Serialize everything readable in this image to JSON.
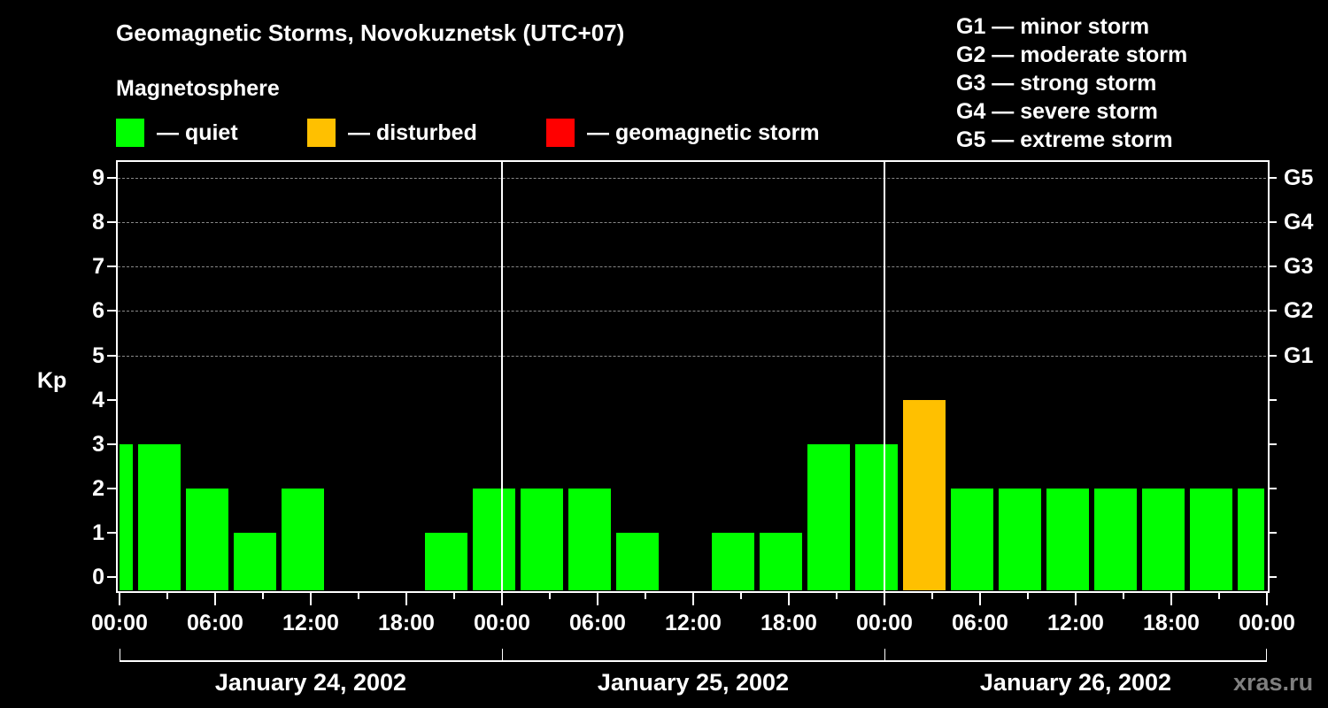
{
  "header": {
    "title": "Geomagnetic Storms, Novokuznetsk (UTC+07)",
    "subtitle": "Magnetosphere"
  },
  "legend": [
    {
      "label": "— quiet",
      "color": "#00ff00"
    },
    {
      "label": "— disturbed",
      "color": "#ffc000"
    },
    {
      "label": "— geomagnetic storm",
      "color": "#ff0000"
    }
  ],
  "storm_scale": [
    "G1 — minor storm",
    "G2 — moderate storm",
    "G3 — strong storm",
    "G4 — severe storm",
    "G5 — extreme storm"
  ],
  "axes": {
    "ylabel": "Kp",
    "yticks": [
      "0",
      "1",
      "2",
      "3",
      "4",
      "5",
      "6",
      "7",
      "8",
      "9"
    ],
    "right_ticks": [
      {
        "kp": 5,
        "label": "G1"
      },
      {
        "kp": 6,
        "label": "G2"
      },
      {
        "kp": 7,
        "label": "G3"
      },
      {
        "kp": 8,
        "label": "G4"
      },
      {
        "kp": 9,
        "label": "G5"
      }
    ],
    "xticks": [
      "00:00",
      "06:00",
      "12:00",
      "18:00",
      "00:00",
      "06:00",
      "12:00",
      "18:00",
      "00:00",
      "06:00",
      "12:00",
      "18:00",
      "00:00"
    ],
    "days": [
      "January 24, 2002",
      "January 25, 2002",
      "January 26, 2002"
    ]
  },
  "watermark": "xras.ru",
  "colors": {
    "quiet": "#00ff00",
    "disturbed": "#ffc000",
    "storm": "#ff0000",
    "grid": "#888888"
  },
  "chart_data": {
    "type": "bar",
    "title": "Geomagnetic Storms, Novokuznetsk (UTC+07)",
    "xlabel": "",
    "ylabel": "Kp",
    "ylim": [
      0,
      9
    ],
    "grid": "dashed horizontal at Kp 5-9",
    "note": "3-hour Kp intervals shown in local time (UTC+07); first and last bars are clipped at the chart edges",
    "categories": [
      "Jan 24 22:00-01:00 (partial)",
      "Jan 24 01:00",
      "Jan 24 04:00",
      "Jan 24 07:00",
      "Jan 24 10:00",
      "Jan 24 13:00",
      "Jan 24 16:00",
      "Jan 24 19:00",
      "Jan 24 22:00",
      "Jan 25 01:00",
      "Jan 25 04:00",
      "Jan 25 07:00",
      "Jan 25 10:00",
      "Jan 25 13:00",
      "Jan 25 16:00",
      "Jan 25 19:00",
      "Jan 25 22:00",
      "Jan 26 01:00",
      "Jan 26 04:00",
      "Jan 26 07:00",
      "Jan 26 10:00",
      "Jan 26 13:00",
      "Jan 26 16:00",
      "Jan 26 19:00",
      "Jan 26 22:00 (partial)"
    ],
    "values": [
      3,
      3,
      2,
      1,
      2,
      0,
      0,
      1,
      2,
      2,
      2,
      1,
      0,
      1,
      1,
      3,
      3,
      4,
      2,
      2,
      2,
      2,
      2,
      2,
      2
    ],
    "status": [
      "quiet",
      "quiet",
      "quiet",
      "quiet",
      "quiet",
      "quiet",
      "quiet",
      "quiet",
      "quiet",
      "quiet",
      "quiet",
      "quiet",
      "quiet",
      "quiet",
      "quiet",
      "quiet",
      "quiet",
      "disturbed",
      "quiet",
      "quiet",
      "quiet",
      "quiet",
      "quiet",
      "quiet",
      "quiet"
    ]
  }
}
